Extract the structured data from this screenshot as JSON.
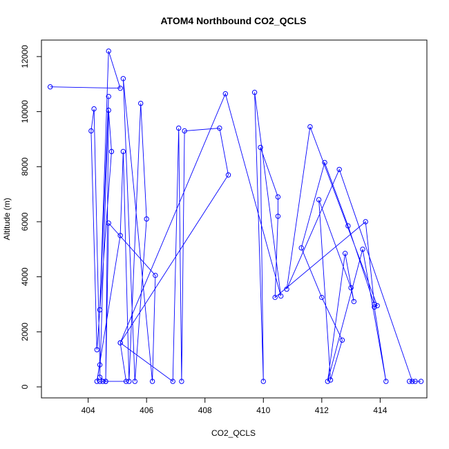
{
  "chart_data": {
    "type": "line",
    "title": "ATOM4 Northbound CO2_QCLS",
    "xlabel": "CO2_QCLS",
    "ylabel": "Altitude (m)",
    "xlim": [
      402.4,
      415.6
    ],
    "ylim": [
      -400,
      12600
    ],
    "xticks": [
      404,
      406,
      408,
      410,
      412,
      414
    ],
    "yticks": [
      0,
      2000,
      4000,
      6000,
      8000,
      10000,
      12000
    ],
    "xtick_labels": [
      "404",
      "406",
      "408",
      "410",
      "412",
      "414"
    ],
    "ytick_labels": [
      "0",
      "2000",
      "4000",
      "6000",
      "8000",
      "10000",
      "12000"
    ],
    "markers": "open-circle",
    "grid": false,
    "legend": "none",
    "color": "#0000ff",
    "series": [
      {
        "x": [
          402.7,
          405.1,
          404.7,
          404.4,
          404.7,
          404.4,
          404.6,
          404.7,
          404.8,
          404.3,
          404.1,
          404.2,
          404.4,
          404.3,
          405.1,
          405.2,
          405.4,
          405.8,
          406.0,
          405.6,
          405.2,
          406.2,
          406.3,
          404.7,
          404.6,
          404.5,
          404.4,
          405.3,
          405.1,
          406.9,
          407.1,
          407.2,
          407.3,
          408.5,
          408.8,
          405.1,
          408.7,
          410.6,
          409.7,
          410.0,
          409.9,
          410.5,
          410.5,
          410.4,
          413.5,
          413.8,
          412.9,
          412.1,
          411.3,
          412.0,
          412.7,
          412.3,
          411.9,
          413.0,
          413.1,
          412.8,
          412.2,
          413.4,
          414.2,
          413.8,
          413.9,
          411.6,
          410.8,
          412.6,
          415.1,
          415.4,
          415.0,
          415.2
        ],
        "y": [
          10900,
          10850,
          12200,
          2800,
          10550,
          350,
          200,
          10050,
          8550,
          1350,
          9300,
          10100,
          800,
          200,
          5500,
          8550,
          200,
          10300,
          6100,
          200,
          11200,
          200,
          4050,
          5950,
          200,
          200,
          200,
          200,
          1600,
          200,
          9400,
          200,
          9300,
          9400,
          7700,
          1600,
          10650,
          3300,
          10700,
          200,
          8700,
          6900,
          6200,
          3250,
          6000,
          3000,
          5850,
          8150,
          5050,
          3250,
          1700,
          250,
          6800,
          3600,
          3100,
          4850,
          200,
          5000,
          200,
          2900,
          2950,
          9450,
          3550,
          7900,
          200,
          200,
          200,
          200
        ]
      }
    ]
  }
}
